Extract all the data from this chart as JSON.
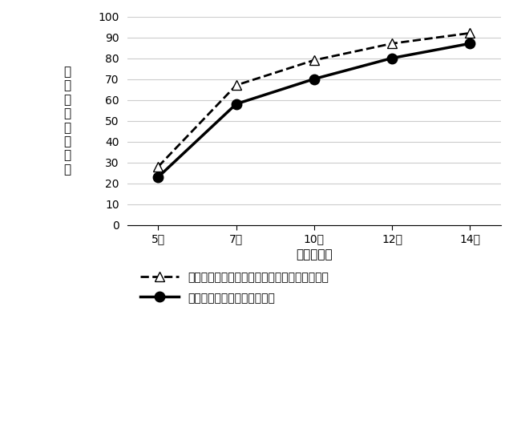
{
  "xlabel": "播種後日数",
  "ylabel": "累\n積\n出\n芽\n率\n（\n％\n）",
  "x_labels": [
    "5日",
    "7日",
    "10日",
    "12日",
    "14日"
  ],
  "x_values": [
    5,
    7,
    10,
    12,
    14
  ],
  "series": [
    {
      "label": "ダウンカットロータリ＋アップカットロータリ",
      "y": [
        28,
        67,
        79,
        87,
        92
      ],
      "color": "#000000",
      "linestyle": "dashed",
      "marker": "^",
      "marker_facecolor": "white",
      "linewidth": 2.0,
      "markersize": 9
    },
    {
      "label": "チゼルプラウ＋パワーハロー",
      "y": [
        23,
        58,
        70,
        80,
        87
      ],
      "color": "#000000",
      "linestyle": "solid",
      "marker": "o",
      "marker_facecolor": "#000000",
      "linewidth": 2.5,
      "markersize": 9
    }
  ],
  "ylim": [
    0,
    100
  ],
  "yticks": [
    0,
    10,
    20,
    30,
    40,
    50,
    60,
    70,
    80,
    90,
    100
  ],
  "background_color": "#ffffff",
  "grid_color": "#cccccc",
  "axis_fontsize": 11,
  "tick_fontsize": 10,
  "legend_fontsize": 10
}
